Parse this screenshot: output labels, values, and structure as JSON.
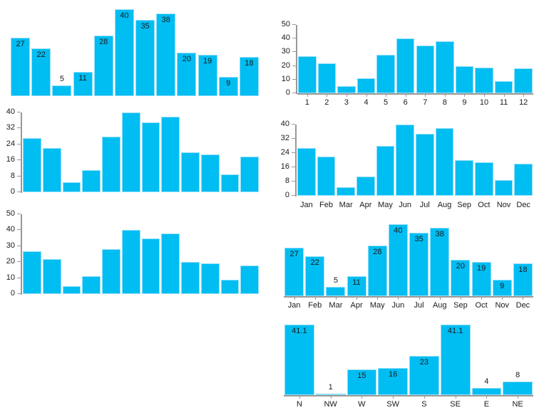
{
  "colors": {
    "bar_fill": "#00bdf2",
    "bar_border": "#90defa",
    "axis": "#999999",
    "text": "#1a1a1a",
    "background": "#ffffff"
  },
  "chart_data": [
    {
      "id": "c1",
      "name": "bars-with-value-labels",
      "type": "bar",
      "values": [
        27,
        22,
        5,
        11,
        28,
        40,
        35,
        38,
        20,
        19,
        9,
        18
      ],
      "data_labels": true,
      "x_labels": null,
      "y_ticks": null,
      "baseline": false,
      "ylim": [
        0,
        41
      ],
      "grid": false,
      "legend": false
    },
    {
      "id": "c2",
      "name": "bars-numeric-months-axis",
      "type": "bar",
      "categories": [
        "1",
        "2",
        "3",
        "4",
        "5",
        "6",
        "7",
        "8",
        "9",
        "10",
        "11",
        "12"
      ],
      "values": [
        27,
        22,
        5,
        11,
        28,
        40,
        35,
        38,
        20,
        19,
        9,
        18
      ],
      "data_labels": false,
      "x_labels": [
        "1",
        "2",
        "3",
        "4",
        "5",
        "6",
        "7",
        "8",
        "9",
        "10",
        "11",
        "12"
      ],
      "y_ticks": [
        0,
        10,
        20,
        30,
        40,
        50
      ],
      "baseline": true,
      "ylim": [
        0,
        50
      ],
      "grid": false,
      "legend": false
    },
    {
      "id": "c3",
      "name": "bars-yaxis-0-40",
      "type": "bar",
      "values": [
        27,
        22,
        5,
        11,
        28,
        40,
        35,
        38,
        20,
        19,
        9,
        18
      ],
      "data_labels": false,
      "x_labels": null,
      "y_ticks": [
        0,
        8,
        16,
        24,
        32,
        40
      ],
      "baseline": false,
      "ylim": [
        0,
        40
      ],
      "grid": false,
      "legend": false
    },
    {
      "id": "c4",
      "name": "bars-yaxis-0-40-month-names",
      "type": "bar",
      "categories": [
        "Jan",
        "Feb",
        "Mar",
        "Apr",
        "May",
        "Jun",
        "Jul",
        "Aug",
        "Sep",
        "Oct",
        "Nov",
        "Dec"
      ],
      "values": [
        27,
        22,
        5,
        11,
        28,
        40,
        35,
        38,
        20,
        19,
        9,
        18
      ],
      "data_labels": false,
      "x_labels": [
        "Jan",
        "Feb",
        "Mar",
        "Apr",
        "May",
        "Jun",
        "Jul",
        "Aug",
        "Sep",
        "Oct",
        "Nov",
        "Dec"
      ],
      "y_ticks": [
        0,
        8,
        16,
        24,
        32,
        40
      ],
      "baseline": false,
      "ylim": [
        0,
        40
      ],
      "grid": false,
      "legend": false
    },
    {
      "id": "c5",
      "name": "bars-yaxis-0-50",
      "type": "bar",
      "values": [
        27,
        22,
        5,
        11,
        28,
        40,
        35,
        38,
        20,
        19,
        9,
        18
      ],
      "data_labels": false,
      "x_labels": null,
      "y_ticks": [
        0,
        10,
        20,
        30,
        40,
        50
      ],
      "baseline": false,
      "ylim": [
        0,
        50
      ],
      "grid": false,
      "legend": false
    },
    {
      "id": "c6",
      "name": "bars-value-labels-month-names",
      "type": "bar",
      "categories": [
        "Jan",
        "Feb",
        "Mar",
        "Apr",
        "May",
        "Jun",
        "Jul",
        "Aug",
        "Sep",
        "Oct",
        "Nov",
        "Dec"
      ],
      "values": [
        27,
        22,
        5,
        11,
        28,
        40,
        35,
        38,
        20,
        19,
        9,
        18
      ],
      "data_labels": true,
      "x_labels": [
        "Jan",
        "Feb",
        "Mar",
        "Apr",
        "May",
        "Jun",
        "Jul",
        "Aug",
        "Sep",
        "Oct",
        "Nov",
        "Dec"
      ],
      "y_ticks": null,
      "baseline": true,
      "ylim": [
        0,
        41
      ],
      "grid": false,
      "legend": false
    },
    {
      "id": "c7",
      "name": "wind-direction-bars",
      "type": "bar",
      "categories": [
        "N",
        "NW",
        "W",
        "SW",
        "S",
        "SE",
        "E",
        "NE"
      ],
      "values": [
        41.1,
        1,
        15,
        16,
        23,
        41.1,
        4,
        8
      ],
      "data_labels": true,
      "x_labels": [
        "N",
        "NW",
        "W",
        "SW",
        "S",
        "SE",
        "E",
        "NE"
      ],
      "y_ticks": null,
      "baseline": true,
      "ylim": [
        0,
        42.4
      ],
      "grid": false,
      "legend": false
    }
  ]
}
